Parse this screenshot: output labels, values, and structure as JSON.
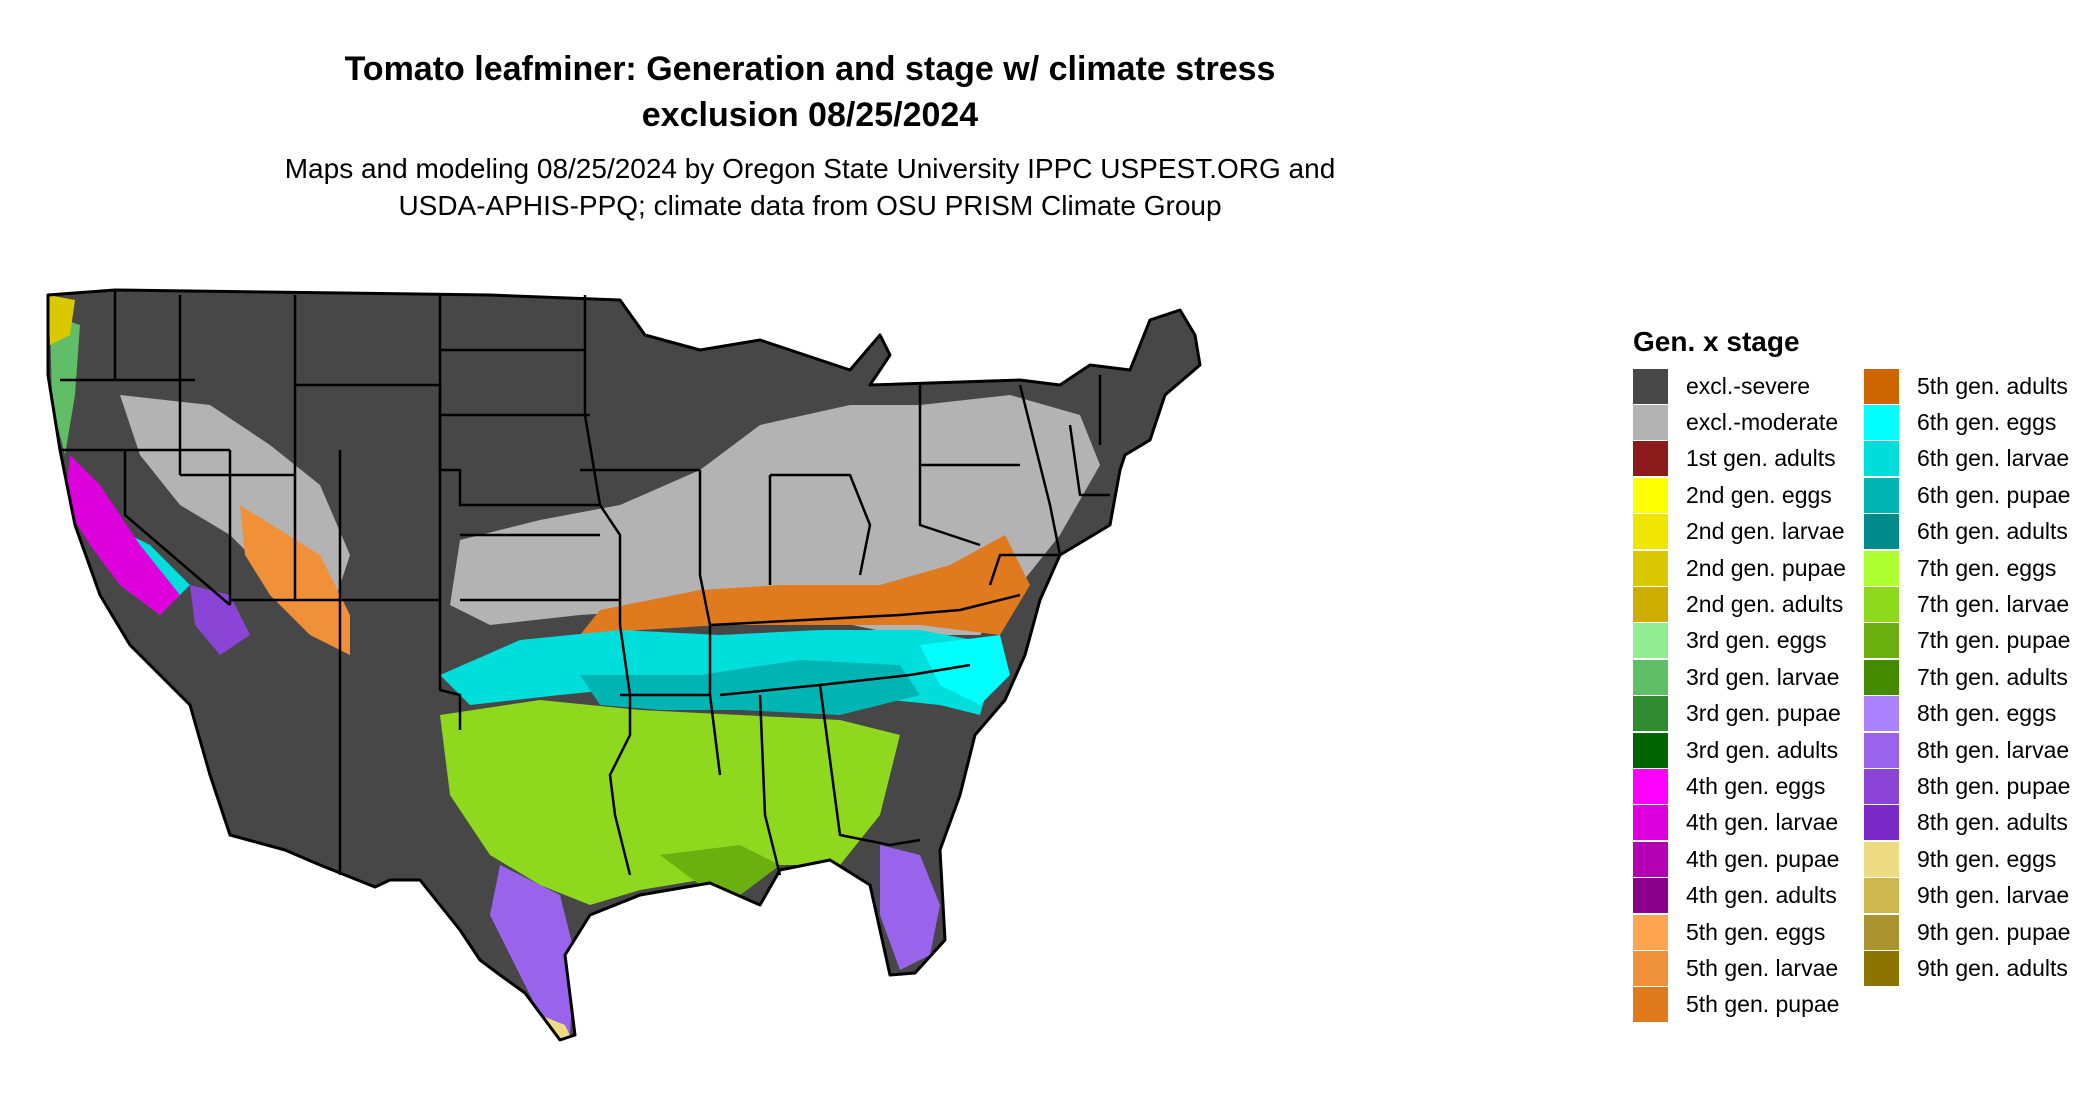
{
  "title": {
    "line1": "Tomato leafminer: Generation and stage w/ climate stress",
    "line2": "exclusion 08/25/2024"
  },
  "subtitle": {
    "line1": "Maps and modeling 08/25/2024 by Oregon State University IPPC USPEST.ORG and",
    "line2": "USDA-APHIS-PPQ; climate data from OSU PRISM Climate Group"
  },
  "legend": {
    "title": "Gen. x stage",
    "column1": [
      {
        "label": "excl.-severe",
        "color": "#474747"
      },
      {
        "label": "excl.-moderate",
        "color": "#b3b3b3"
      },
      {
        "label": "1st gen. adults",
        "color": "#8b1a1a"
      },
      {
        "label": "2nd gen. eggs",
        "color": "#ffff00"
      },
      {
        "label": "2nd gen. larvae",
        "color": "#eee600"
      },
      {
        "label": "2nd gen. pupae",
        "color": "#dcc800"
      },
      {
        "label": "2nd gen. adults",
        "color": "#cdad00"
      },
      {
        "label": "3rd gen. eggs",
        "color": "#90ee90"
      },
      {
        "label": "3rd gen. larvae",
        "color": "#5fbe66"
      },
      {
        "label": "3rd gen. pupae",
        "color": "#2e8b2e"
      },
      {
        "label": "3rd gen. adults",
        "color": "#006400"
      },
      {
        "label": "4th gen. eggs",
        "color": "#ff00ff"
      },
      {
        "label": "4th gen. larvae",
        "color": "#dd00dd"
      },
      {
        "label": "4th gen. pupae",
        "color": "#b400b4"
      },
      {
        "label": "4th gen. adults",
        "color": "#8b008b"
      },
      {
        "label": "5th gen. eggs",
        "color": "#ffa54f"
      },
      {
        "label": "5th gen. larvae",
        "color": "#f0913a"
      },
      {
        "label": "5th gen. pupae",
        "color": "#e07a1f"
      }
    ],
    "column2": [
      {
        "label": "5th gen. adults",
        "color": "#cd6600"
      },
      {
        "label": "6th gen. eggs",
        "color": "#00ffff"
      },
      {
        "label": "6th gen. larvae",
        "color": "#00dedc"
      },
      {
        "label": "6th gen. pupae",
        "color": "#00b4b4"
      },
      {
        "label": "6th gen. adults",
        "color": "#008b8b"
      },
      {
        "label": "7th gen. eggs",
        "color": "#adff2f"
      },
      {
        "label": "7th gen. larvae",
        "color": "#8ed81e"
      },
      {
        "label": "7th gen. pupae",
        "color": "#6bb00f"
      },
      {
        "label": "7th gen. adults",
        "color": "#458b00"
      },
      {
        "label": "8th gen. eggs",
        "color": "#ab82ff"
      },
      {
        "label": "8th gen. larvae",
        "color": "#9a63eb"
      },
      {
        "label": "8th gen. pupae",
        "color": "#8a45d6"
      },
      {
        "label": "8th gen. adults",
        "color": "#7a28c8"
      },
      {
        "label": "9th gen. eggs",
        "color": "#eedc82"
      },
      {
        "label": "9th gen. larvae",
        "color": "#cdb850"
      },
      {
        "label": "9th gen. pupae",
        "color": "#ab9430"
      },
      {
        "label": "9th gen. adults",
        "color": "#8b7500"
      }
    ]
  },
  "map": {
    "colors": {
      "severe": "#474747",
      "moderate": "#b3b3b3",
      "fifth_larvae": "#f0913a",
      "fifth_pupae": "#e07a1f",
      "sixth_eggs": "#00ffff",
      "sixth_larvae": "#00dedc",
      "sixth_pupae": "#00b4b4",
      "sixth_adults": "#008b8b",
      "seventh_larvae": "#8ed81e",
      "seventh_pupae": "#6bb00f",
      "eighth_larvae": "#9a63eb",
      "eighth_pupae": "#8a45d6",
      "fourth_larvae": "#dd00dd",
      "fourth_pupae": "#b400b4",
      "third_larvae": "#5fbe66",
      "third_pupae": "#2e8b2e",
      "second_pupae": "#dcc800",
      "ninth_eggs": "#eedc82",
      "ninth_larvae": "#cdb850",
      "borders": "#000000"
    }
  }
}
